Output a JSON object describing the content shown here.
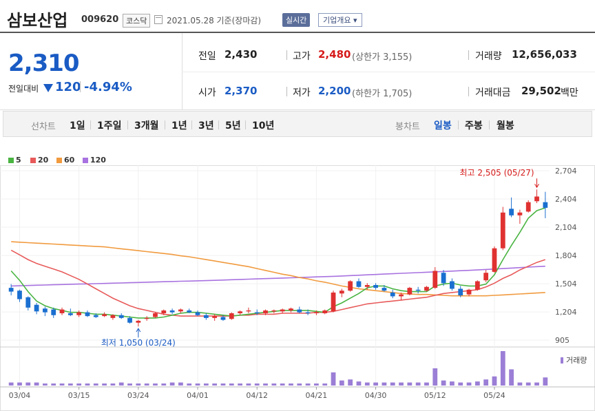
{
  "header": {
    "title": "삼보산업",
    "code": "009620",
    "market": "코스닥",
    "date": "2021.05.28 기준(장마감)",
    "realtime_label": "실시간",
    "company_info_label": "기업개요 ▾"
  },
  "summary": {
    "current_price": "2,310",
    "prev_label": "전일대비",
    "change": "120",
    "change_pct": "-4.94%",
    "prev_close_label": "전일",
    "prev_close": "2,430",
    "high_label": "고가",
    "high": "2,480",
    "upper_limit": "(상한가 3,155)",
    "volume_label": "거래량",
    "volume": "12,656,033",
    "open_label": "시가",
    "open": "2,370",
    "low_label": "저가",
    "low": "2,200",
    "lower_limit": "(하한가 1,705)",
    "trade_value_label": "거래대금",
    "trade_value": "29,502",
    "trade_value_unit": "백만"
  },
  "periods": {
    "line_label": "선차트",
    "line_items": [
      "1일",
      "1주일",
      "3개월",
      "1년",
      "3년",
      "5년",
      "10년"
    ],
    "candle_label": "봉차트",
    "candle_items": [
      "일봉",
      "주봉",
      "월봉"
    ],
    "active_candle": "일봉"
  },
  "colors": {
    "up": "#e03131",
    "down": "#1a6fd0",
    "ma5": "#49b441",
    "ma20": "#e85a5a",
    "ma60": "#f19a3e",
    "ma120": "#a872e0",
    "volume": "#9b7ed6"
  },
  "chart_data": {
    "type": "candlestick",
    "legend": [
      {
        "name": "5",
        "color": "#49b441"
      },
      {
        "name": "20",
        "color": "#e85a5a"
      },
      {
        "name": "60",
        "color": "#f19a3e"
      },
      {
        "name": "120",
        "color": "#a872e0"
      }
    ],
    "y_ticks": [
      "2,704",
      "2,404",
      "2,104",
      "1,804",
      "1,504",
      "1,204",
      "905"
    ],
    "ylim": [
      905,
      2704
    ],
    "x_ticks": [
      "03/04",
      "03/15",
      "03/24",
      "04/01",
      "04/12",
      "04/21",
      "04/30",
      "05/12",
      "05/24"
    ],
    "high_annotation": "최고 2,505 (05/27)",
    "low_annotation": "최저 1,050 (03/24)",
    "volume_label": "거래량",
    "candles": [
      [
        1460,
        1500,
        1380,
        1420
      ],
      [
        1430,
        1440,
        1310,
        1340
      ],
      [
        1360,
        1370,
        1220,
        1250
      ],
      [
        1280,
        1300,
        1180,
        1210
      ],
      [
        1240,
        1260,
        1160,
        1200
      ],
      [
        1230,
        1250,
        1140,
        1170
      ],
      [
        1190,
        1250,
        1170,
        1230
      ],
      [
        1190,
        1240,
        1160,
        1170
      ],
      [
        1170,
        1220,
        1150,
        1200
      ],
      [
        1200,
        1220,
        1150,
        1160
      ],
      [
        1170,
        1190,
        1140,
        1150
      ],
      [
        1160,
        1200,
        1150,
        1180
      ],
      [
        1140,
        1180,
        1120,
        1170
      ],
      [
        1170,
        1190,
        1130,
        1140
      ],
      [
        1140,
        1160,
        1080,
        1090
      ],
      [
        1090,
        1120,
        1050,
        1110
      ],
      [
        1130,
        1160,
        1110,
        1140
      ],
      [
        1150,
        1200,
        1140,
        1190
      ],
      [
        1190,
        1230,
        1170,
        1220
      ],
      [
        1220,
        1240,
        1180,
        1200
      ],
      [
        1210,
        1240,
        1190,
        1230
      ],
      [
        1220,
        1240,
        1190,
        1200
      ],
      [
        1200,
        1220,
        1160,
        1170
      ],
      [
        1170,
        1190,
        1120,
        1140
      ],
      [
        1140,
        1180,
        1110,
        1160
      ],
      [
        1150,
        1170,
        1110,
        1120
      ],
      [
        1130,
        1200,
        1120,
        1190
      ],
      [
        1190,
        1220,
        1170,
        1210
      ],
      [
        1210,
        1250,
        1190,
        1220
      ],
      [
        1200,
        1230,
        1170,
        1190
      ],
      [
        1190,
        1230,
        1170,
        1220
      ],
      [
        1210,
        1230,
        1190,
        1220
      ],
      [
        1210,
        1240,
        1190,
        1230
      ],
      [
        1220,
        1250,
        1200,
        1240
      ],
      [
        1230,
        1260,
        1190,
        1200
      ],
      [
        1200,
        1230,
        1170,
        1190
      ],
      [
        1190,
        1220,
        1170,
        1200
      ],
      [
        1190,
        1230,
        1180,
        1220
      ],
      [
        1210,
        1430,
        1200,
        1410
      ],
      [
        1400,
        1450,
        1360,
        1430
      ],
      [
        1430,
        1540,
        1420,
        1530
      ],
      [
        1530,
        1560,
        1460,
        1470
      ],
      [
        1470,
        1510,
        1440,
        1490
      ],
      [
        1490,
        1510,
        1440,
        1460
      ],
      [
        1460,
        1490,
        1420,
        1430
      ],
      [
        1410,
        1440,
        1350,
        1370
      ],
      [
        1370,
        1410,
        1330,
        1390
      ],
      [
        1390,
        1470,
        1380,
        1460
      ],
      [
        1440,
        1470,
        1400,
        1430
      ],
      [
        1430,
        1480,
        1420,
        1470
      ],
      [
        1460,
        1680,
        1450,
        1640
      ],
      [
        1620,
        1650,
        1480,
        1510
      ],
      [
        1530,
        1560,
        1430,
        1450
      ],
      [
        1450,
        1480,
        1360,
        1380
      ],
      [
        1390,
        1450,
        1370,
        1440
      ],
      [
        1440,
        1540,
        1430,
        1530
      ],
      [
        1540,
        1650,
        1520,
        1620
      ],
      [
        1630,
        1900,
        1620,
        1880
      ],
      [
        1880,
        2320,
        1860,
        2260
      ],
      [
        2300,
        2420,
        2210,
        2230
      ],
      [
        2230,
        2290,
        2140,
        2260
      ],
      [
        2270,
        2390,
        2260,
        2370
      ],
      [
        2380,
        2505,
        2360,
        2430
      ],
      [
        2370,
        2480,
        2200,
        2310
      ]
    ],
    "ma5": [
      1640,
      1540,
      1420,
      1320,
      1270,
      1240,
      1220,
      1200,
      1200,
      1190,
      1180,
      1180,
      1170,
      1160,
      1150,
      1140,
      1140,
      1140,
      1150,
      1170,
      1190,
      1200,
      1200,
      1190,
      1180,
      1170,
      1160,
      1170,
      1180,
      1190,
      1200,
      1210,
      1220,
      1220,
      1220,
      1220,
      1210,
      1200,
      1260,
      1300,
      1350,
      1400,
      1460,
      1480,
      1480,
      1450,
      1430,
      1420,
      1420,
      1420,
      1480,
      1500,
      1510,
      1490,
      1480,
      1480,
      1500,
      1600,
      1760,
      1910,
      2050,
      2200,
      2280,
      2310
    ],
    "ma20": [
      1860,
      1810,
      1760,
      1720,
      1690,
      1660,
      1630,
      1590,
      1550,
      1500,
      1450,
      1400,
      1350,
      1310,
      1270,
      1240,
      1220,
      1200,
      1180,
      1170,
      1160,
      1160,
      1160,
      1160,
      1160,
      1160,
      1160,
      1170,
      1170,
      1180,
      1180,
      1180,
      1190,
      1190,
      1190,
      1190,
      1200,
      1200,
      1210,
      1230,
      1250,
      1270,
      1290,
      1300,
      1310,
      1320,
      1330,
      1340,
      1350,
      1360,
      1380,
      1400,
      1410,
      1420,
      1430,
      1440,
      1470,
      1510,
      1560,
      1600,
      1650,
      1690,
      1730,
      1760
    ],
    "ma60": [
      1950,
      1945,
      1940,
      1935,
      1930,
      1925,
      1920,
      1915,
      1910,
      1905,
      1900,
      1895,
      1885,
      1875,
      1865,
      1855,
      1845,
      1835,
      1825,
      1815,
      1800,
      1790,
      1775,
      1760,
      1745,
      1730,
      1715,
      1700,
      1685,
      1665,
      1645,
      1625,
      1605,
      1590,
      1570,
      1555,
      1535,
      1520,
      1500,
      1480,
      1465,
      1450,
      1440,
      1430,
      1420,
      1410,
      1400,
      1395,
      1390,
      1390,
      1385,
      1380,
      1375,
      1375,
      1375,
      1375,
      1375,
      1380,
      1385,
      1390,
      1395,
      1400,
      1405,
      1410
    ],
    "ma120": [
      1480,
      1482,
      1485,
      1488,
      1490,
      1493,
      1495,
      1498,
      1500,
      1502,
      1505,
      1507,
      1510,
      1512,
      1515,
      1517,
      1520,
      1522,
      1525,
      1527,
      1530,
      1532,
      1535,
      1537,
      1540,
      1543,
      1546,
      1549,
      1552,
      1555,
      1558,
      1561,
      1564,
      1567,
      1570,
      1573,
      1576,
      1579,
      1582,
      1586,
      1590,
      1594,
      1598,
      1602,
      1606,
      1610,
      1614,
      1618,
      1622,
      1626,
      1630,
      1634,
      1638,
      1642,
      1646,
      1650,
      1655,
      1660,
      1665,
      1670,
      1675,
      1680,
      1685,
      1690
    ],
    "volumes": [
      3,
      3,
      3,
      3,
      2,
      2,
      2,
      2,
      2,
      2,
      2,
      2,
      2,
      3,
      2,
      2,
      2,
      2,
      2,
      3,
      3,
      2,
      2,
      2,
      2,
      2,
      2,
      2,
      2,
      2,
      2,
      2,
      2,
      2,
      2,
      2,
      2,
      2,
      13,
      5,
      6,
      4,
      3,
      3,
      3,
      3,
      3,
      3,
      3,
      3,
      17,
      5,
      4,
      3,
      3,
      4,
      6,
      9,
      34,
      16,
      3,
      3,
      3,
      8
    ]
  }
}
